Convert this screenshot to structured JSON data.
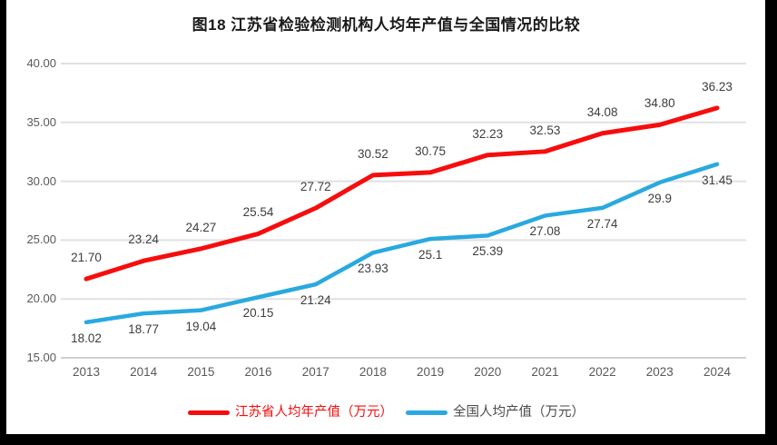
{
  "title": "图18  江苏省检验检测机构人均年产值与全国情况的比较",
  "chart_data": {
    "type": "line",
    "title": "图18  江苏省检验检测机构人均年产值与全国情况的比较",
    "categories": [
      "2013",
      "2014",
      "2015",
      "2016",
      "2017",
      "2018",
      "2019",
      "2020",
      "2021",
      "2022",
      "2023",
      "2024"
    ],
    "series": [
      {
        "name": "江苏省人均年产值（万元）",
        "color": "#f60d0d",
        "values": [
          21.7,
          23.24,
          24.27,
          25.54,
          27.72,
          30.52,
          30.75,
          32.23,
          32.53,
          34.08,
          34.8,
          36.23
        ],
        "value_labels": [
          "21.70",
          "23.24",
          "24.27",
          "25.54",
          "27.72",
          "30.52",
          "30.75",
          "32.23",
          "32.53",
          "34.08",
          "34.80",
          "36.23"
        ],
        "label_side": "above"
      },
      {
        "name": "全国人均产值（万元）",
        "color": "#29a9df",
        "values": [
          18.02,
          18.77,
          19.04,
          20.15,
          21.24,
          23.93,
          25.1,
          25.39,
          27.08,
          27.74,
          29.9,
          31.45
        ],
        "value_labels": [
          "18.02",
          "18.77",
          "19.04",
          "20.15",
          "21.24",
          "23.93",
          "25.1",
          "25.39",
          "27.08",
          "27.74",
          "29.9",
          "31.45"
        ],
        "label_side": "below"
      }
    ],
    "ylim": [
      15,
      40
    ],
    "yticks": [
      {
        "value": 40,
        "label": "40.00"
      },
      {
        "value": 35,
        "label": "35.00"
      },
      {
        "value": 30,
        "label": "30.00"
      },
      {
        "value": 25,
        "label": "25.00"
      },
      {
        "value": 20,
        "label": "20.00"
      },
      {
        "value": 15,
        "label": "15.00"
      }
    ],
    "grid": true,
    "legend_position": "bottom"
  },
  "legend": {
    "items": [
      {
        "label": "江苏省人均年产值（万元）",
        "swatch_color": "#f60d0d",
        "text_color": "#f60d0d"
      },
      {
        "label": "全国人均产值（万元）",
        "swatch_color": "#29a9df",
        "text_color": "#4a4a4a"
      }
    ]
  },
  "colors": {
    "background": "#ffffff",
    "frame_bars": "#000000",
    "gridline": "#e0e0e0",
    "axis_line": "#d0d0d0",
    "tick_text": "#595959",
    "data_label_text": "#3d3d3d",
    "title_text": "#1a1a1a"
  }
}
